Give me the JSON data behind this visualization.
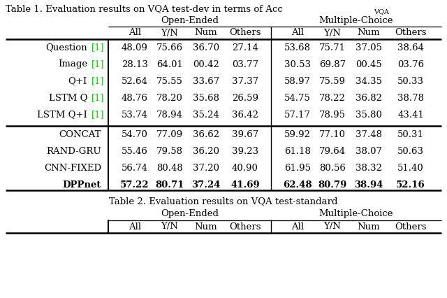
{
  "title1_main": "Table 1. Evaluation results on VQA test-dev in terms of Acc",
  "title1_sub": "VQA",
  "title2": "Table 2. Evaluation results on VQA test-standard",
  "col_group_labels": [
    "Open-Ended",
    "Multiple-Choice"
  ],
  "col_headers": [
    "All",
    "Y/N",
    "Num",
    "Others",
    "All",
    "Y/N",
    "Num",
    "Others"
  ],
  "rows_group1": [
    {
      "name": "Question",
      "ref": " [1]",
      "bold": false,
      "vals": [
        "48.09",
        "75.66",
        "36.70",
        "27.14",
        "53.68",
        "75.71",
        "37.05",
        "38.64"
      ]
    },
    {
      "name": "Image",
      "ref": " [1]",
      "bold": false,
      "vals": [
        "28.13",
        "64.01",
        "00.42",
        "03.77",
        "30.53",
        "69.87",
        "00.45",
        "03.76"
      ]
    },
    {
      "name": "Q+I",
      "ref": " [1]",
      "bold": false,
      "vals": [
        "52.64",
        "75.55",
        "33.67",
        "37.37",
        "58.97",
        "75.59",
        "34.35",
        "50.33"
      ]
    },
    {
      "name": "LSTM Q",
      "ref": " [1]",
      "bold": false,
      "vals": [
        "48.76",
        "78.20",
        "35.68",
        "26.59",
        "54.75",
        "78.22",
        "36.82",
        "38.78"
      ]
    },
    {
      "name": "LSTM Q+I",
      "ref": " [1]",
      "bold": false,
      "vals": [
        "53.74",
        "78.94",
        "35.24",
        "36.42",
        "57.17",
        "78.95",
        "35.80",
        "43.41"
      ]
    }
  ],
  "rows_group2": [
    {
      "name": "CONCAT",
      "ref": "",
      "bold": false,
      "vals": [
        "54.70",
        "77.09",
        "36.62",
        "39.67",
        "59.92",
        "77.10",
        "37.48",
        "50.31"
      ]
    },
    {
      "name": "RAND-GRU",
      "ref": "",
      "bold": false,
      "vals": [
        "55.46",
        "79.58",
        "36.20",
        "39.23",
        "61.18",
        "79.64",
        "38.07",
        "50.63"
      ]
    },
    {
      "name": "CNN-FIXED",
      "ref": "",
      "bold": false,
      "vals": [
        "56.74",
        "80.48",
        "37.20",
        "40.90",
        "61.95",
        "80.56",
        "38.32",
        "51.40"
      ]
    },
    {
      "name": "DPPnet",
      "ref": "",
      "bold": true,
      "vals": [
        "57.22",
        "80.71",
        "37.24",
        "41.69",
        "62.48",
        "80.79",
        "38.94",
        "52.16"
      ]
    }
  ],
  "bg_color": "#ffffff",
  "green_color": "#00cc00",
  "fontsize": 9.5,
  "fontsize_sub": 7.0
}
